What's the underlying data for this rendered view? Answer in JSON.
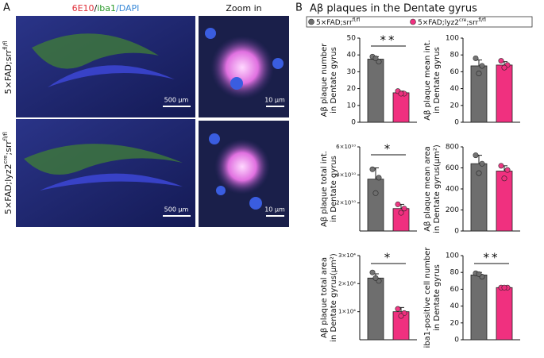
{
  "panel_a": {
    "label": "A",
    "stain": [
      "6E10",
      "/",
      "iba1",
      "/DAPI"
    ],
    "zoom_title": "Zoom in",
    "row_labels": [
      {
        "text": "5×FAD;srr",
        "sup": "fl/fl"
      },
      {
        "text": "5×FAD;lyz2",
        "sup": "cre",
        "text2": ";srr",
        "sup2": "fl/fl"
      }
    ],
    "scale_bars": [
      "500 µm",
      "10 µm",
      "500 µm",
      "10 µm"
    ]
  },
  "panel_b": {
    "label": "B",
    "title": "Aβ plaques in the Dentate gyrus",
    "legend": [
      {
        "text": "5×FAD;srr",
        "sup": "fl/fl",
        "color": "#6e6e6e"
      },
      {
        "text": "5×FAD;lyz2",
        "sup": "cre",
        "text2": ";srr",
        "sup2": "fl/fl",
        "color": "#f0307f"
      }
    ]
  },
  "chart_data": [
    {
      "type": "bar",
      "ylabel": [
        "Aβ plaque number",
        "in Dentate gyrus"
      ],
      "ylim": [
        0,
        50
      ],
      "yticks": [
        0,
        10,
        20,
        30,
        40,
        50
      ],
      "values": [
        37.5,
        17.5
      ],
      "errors": [
        1.5,
        1
      ],
      "points": [
        [
          39,
          36,
          38
        ],
        [
          18.5,
          17,
          17
        ]
      ],
      "significance": "**"
    },
    {
      "type": "bar",
      "ylabel": [
        "Aβ plaque mean int.",
        "in Dentate gyrus"
      ],
      "ylim": [
        0,
        100
      ],
      "yticks": [
        0,
        20,
        40,
        60,
        80,
        100
      ],
      "values": [
        67,
        68
      ],
      "errors": [
        7,
        4
      ],
      "points": [
        [
          76,
          67,
          58
        ],
        [
          73,
          68,
          65
        ]
      ]
    },
    {
      "type": "bar",
      "ylabel": [
        "Aβ plaque total int.",
        "in Dentate gyrus"
      ],
      "ylim": [
        0,
        60000000000
      ],
      "yticks": [
        {
          "value": 20000000000,
          "label": "2×10¹⁰"
        },
        {
          "value": 40000000000,
          "label": "4×10¹⁰"
        },
        {
          "value": 60000000000,
          "label": "6×10¹⁰"
        }
      ],
      "values": [
        37000000000,
        16000000000
      ],
      "errors": [
        8000000000,
        3000000000
      ],
      "points": [
        [
          44000000000,
          38000000000,
          27000000000
        ],
        [
          19000000000,
          16000000000,
          13000000000
        ]
      ],
      "significance": "*"
    },
    {
      "type": "bar",
      "ylabel": [
        "Aβ plaque mean area",
        "in Dentate gyrus(µm²)"
      ],
      "ylim": [
        0,
        800
      ],
      "yticks": [
        0,
        200,
        400,
        600,
        800
      ],
      "values": [
        640,
        570
      ],
      "errors": [
        80,
        50
      ],
      "points": [
        [
          720,
          640,
          550
        ],
        [
          620,
          580,
          500
        ]
      ]
    },
    {
      "type": "bar",
      "ylabel": [
        "Aβ plaque total area",
        "in Dentate gyrus(µm²)"
      ],
      "ylim": [
        0,
        30000
      ],
      "yticks": [
        {
          "value": 10000,
          "label": "1×10⁴"
        },
        {
          "value": 20000,
          "label": "2×10⁴"
        },
        {
          "value": 30000,
          "label": "3×10⁴"
        }
      ],
      "values": [
        22000,
        10000
      ],
      "errors": [
        1500,
        1500
      ],
      "points": [
        [
          24000,
          21000,
          22000
        ],
        [
          11000,
          9500,
          8500
        ]
      ],
      "significance": "*"
    },
    {
      "type": "bar",
      "ylabel": [
        "iba1-positive cell number",
        "in Dentate gyrus"
      ],
      "ylim": [
        0,
        100
      ],
      "yticks": [
        0,
        20,
        40,
        60,
        80,
        100
      ],
      "values": [
        77,
        62
      ],
      "errors": [
        3,
        1
      ],
      "points": [
        [
          79,
          75,
          78
        ],
        [
          62,
          62,
          62
        ]
      ],
      "significance": "**"
    }
  ]
}
